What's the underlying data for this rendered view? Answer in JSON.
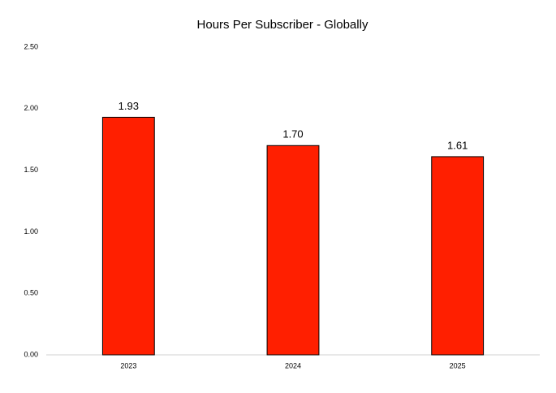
{
  "chart_data": {
    "type": "bar",
    "title": "Hours Per Subscriber - Globally",
    "categories": [
      "2023",
      "2024",
      "2025"
    ],
    "values": [
      1.93,
      1.7,
      1.61
    ],
    "value_labels": [
      "1.93",
      "1.70",
      "1.61"
    ],
    "color": "#ff1f00",
    "ylim": [
      0,
      2.5
    ],
    "yticks": [
      {
        "value": 0,
        "label": "0.00"
      },
      {
        "value": 0.5,
        "label": "0.50"
      },
      {
        "value": 1,
        "label": "1.00"
      },
      {
        "value": 1.5,
        "label": "1.50"
      },
      {
        "value": 2,
        "label": "2.00"
      },
      {
        "value": 2.5,
        "label": "2.50"
      }
    ],
    "grid": false
  }
}
